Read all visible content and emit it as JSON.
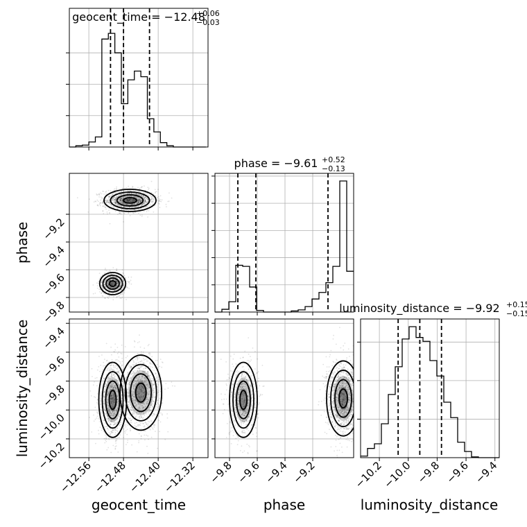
{
  "chart_data": {
    "type": "corner",
    "parameters": [
      "geocent_time",
      "phase",
      "luminosity_distance"
    ],
    "titles": [
      {
        "param": "geocent_time",
        "prefix": "geocent_time = ",
        "median": "−12.48",
        "upper": "+0.06",
        "lower": "−0.03"
      },
      {
        "param": "phase",
        "prefix": "phase = ",
        "median": "−9.61",
        "upper": "+0.52",
        "lower": "−0.13"
      },
      {
        "param": "luminosity_distance",
        "prefix": "luminosity_distance = ",
        "median": "−9.92",
        "upper": "+0.15",
        "lower": "−0.15"
      }
    ],
    "axes": {
      "geocent_time": {
        "range": [
          -12.605,
          -12.285
        ],
        "ticks": [
          -12.56,
          -12.48,
          -12.4,
          -12.32
        ],
        "tick_labels": [
          "−12.56",
          "−12.48",
          "−12.40",
          "−12.32"
        ],
        "xlabel": "geocent_time",
        "ylabel": ""
      },
      "phase": {
        "range": [
          -9.905,
          -8.905
        ],
        "ticks": [
          -9.8,
          -9.6,
          -9.4,
          -9.2
        ],
        "tick_labels": [
          "−9.8",
          "−9.6",
          "−9.4",
          "−9.2"
        ],
        "xlabel": "phase",
        "ylabel": "phase"
      },
      "luminosity_distance": {
        "range": [
          -10.33,
          -9.37
        ],
        "ticks": [
          -10.2,
          -10.0,
          -9.8,
          -9.6,
          -9.4
        ],
        "tick_labels": [
          "−10.2",
          "−10.0",
          "−9.8",
          "−9.6",
          "−9.4"
        ],
        "xlabel": "luminosity_distance",
        "ylabel": "luminosity_distance"
      }
    },
    "quantiles": {
      "geocent_time": [
        -12.51,
        -12.48,
        -12.42
      ],
      "phase": [
        -9.74,
        -9.61,
        -9.09
      ],
      "luminosity_distance": [
        -10.07,
        -9.92,
        -9.77
      ]
    },
    "histograms": {
      "geocent_time": {
        "edges": [
          -12.605,
          -12.59,
          -12.575,
          -12.56,
          -12.545,
          -12.53,
          -12.515,
          -12.5,
          -12.485,
          -12.47,
          -12.455,
          -12.44,
          -12.425,
          -12.41,
          -12.395,
          -12.38,
          -12.365,
          -12.35,
          -12.335,
          -12.32,
          -12.305,
          -12.29
        ],
        "counts": [
          0,
          2,
          3,
          8,
          16,
          172,
          181,
          150,
          69,
          107,
          121,
          112,
          45,
          24,
          7,
          2,
          0,
          0,
          0,
          0,
          0
        ],
        "ymax": 190
      },
      "phase": {
        "edges": [
          -9.905,
          -9.855,
          -9.805,
          -9.755,
          -9.705,
          -9.655,
          -9.605,
          -9.555,
          -9.505,
          -9.455,
          -9.405,
          -9.355,
          -9.305,
          -9.255,
          -9.205,
          -9.155,
          -9.105,
          -9.055,
          -9.005,
          -8.955,
          -8.905
        ],
        "counts": [
          0,
          5,
          19,
          86,
          84,
          46,
          3,
          0,
          0,
          0,
          0,
          2,
          4,
          10,
          24,
          36,
          54,
          84,
          241,
          75
        ],
        "ymax": 255
      },
      "luminosity_distance": {
        "edges": [
          -10.33,
          -10.282,
          -10.234,
          -10.186,
          -10.138,
          -10.09,
          -10.042,
          -9.994,
          -9.946,
          -9.898,
          -9.85,
          -9.802,
          -9.754,
          -9.706,
          -9.658,
          -9.61,
          -9.562,
          -9.514,
          -9.466,
          -9.418,
          -9.37
        ],
        "counts": [
          2,
          12,
          18,
          44,
          82,
          118,
          154,
          170,
          156,
          151,
          126,
          106,
          72,
          52,
          20,
          8,
          1,
          0,
          0,
          0
        ],
        "ymax": 180
      }
    },
    "scatter_clusters": [
      {
        "x": "geocent_time",
        "y": "phase",
        "clusters": [
          {
            "cx": -12.465,
            "cy": -9.1,
            "sx": 0.03,
            "sy": 0.04,
            "weight": 0.64
          },
          {
            "cx": -12.505,
            "cy": -9.7,
            "sx": 0.015,
            "sy": 0.04,
            "weight": 0.36
          }
        ]
      },
      {
        "x": "geocent_time",
        "y": "luminosity_distance",
        "clusters": [
          {
            "cx": -12.505,
            "cy": -9.93,
            "sx": 0.016,
            "sy": 0.13,
            "weight": 0.5
          },
          {
            "cx": -12.44,
            "cy": -9.88,
            "sx": 0.024,
            "sy": 0.13,
            "weight": 0.5
          }
        ]
      },
      {
        "x": "phase",
        "y": "luminosity_distance",
        "clusters": [
          {
            "cx": -9.7,
            "cy": -9.93,
            "sx": 0.05,
            "sy": 0.13,
            "weight": 0.38
          },
          {
            "cx": -8.98,
            "cy": -9.92,
            "sx": 0.06,
            "sy": 0.13,
            "weight": 0.62
          }
        ]
      }
    ],
    "grid": true,
    "title": "",
    "legend": "none"
  }
}
